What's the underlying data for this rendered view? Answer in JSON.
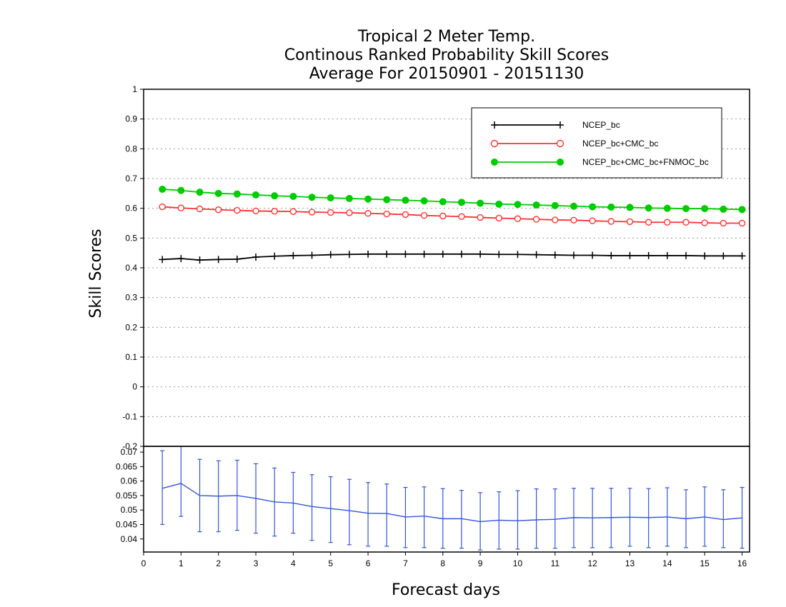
{
  "title": {
    "line1": "Tropical 2 Meter Temp.",
    "line2": "Continous Ranked Probability Skill Scores",
    "line3": "Average For 20150901 - 20151130"
  },
  "chart_data": [
    {
      "type": "line",
      "panel": "top",
      "xlabel": "Forecast days",
      "ylabel": "Skill Scores",
      "xlim": [
        0,
        16.2
      ],
      "ylim": [
        -0.2,
        1.0
      ],
      "yticks": [
        -0.2,
        -0.1,
        0,
        0.1,
        0.2,
        0.3,
        0.4,
        0.5,
        0.6,
        0.7,
        0.8,
        0.9,
        1
      ],
      "ytick_labels": [
        "-0.2",
        "-0.1",
        "0",
        "0.1",
        "0.2",
        "0.3",
        "0.4",
        "0.5",
        "0.6",
        "0.7",
        "0.8",
        "0.9",
        "1"
      ],
      "grid": true,
      "legend_position": "top-right",
      "x": [
        0.5,
        1.0,
        1.5,
        2.0,
        2.5,
        3.0,
        3.5,
        4.0,
        4.5,
        5.0,
        5.5,
        6.0,
        6.5,
        7.0,
        7.5,
        8.0,
        8.5,
        9.0,
        9.5,
        10.0,
        10.5,
        11.0,
        11.5,
        12.0,
        12.5,
        13.0,
        13.5,
        14.0,
        14.5,
        15.0,
        15.5,
        16.0
      ],
      "series": [
        {
          "name": "NCEP_bc",
          "color": "#000000",
          "marker": "plus",
          "values": [
            0.428,
            0.431,
            0.426,
            0.428,
            0.429,
            0.436,
            0.439,
            0.441,
            0.442,
            0.444,
            0.445,
            0.446,
            0.446,
            0.446,
            0.446,
            0.446,
            0.446,
            0.446,
            0.445,
            0.445,
            0.444,
            0.443,
            0.442,
            0.442,
            0.441,
            0.441,
            0.441,
            0.441,
            0.441,
            0.44,
            0.44,
            0.44
          ]
        },
        {
          "name": "NCEP_bc+CMC_bc",
          "color": "#ff3333",
          "marker": "open-circle",
          "values": [
            0.605,
            0.601,
            0.598,
            0.595,
            0.593,
            0.591,
            0.59,
            0.589,
            0.587,
            0.586,
            0.585,
            0.583,
            0.581,
            0.579,
            0.576,
            0.574,
            0.572,
            0.569,
            0.567,
            0.565,
            0.563,
            0.561,
            0.56,
            0.558,
            0.556,
            0.555,
            0.553,
            0.553,
            0.553,
            0.551,
            0.55,
            0.55
          ]
        },
        {
          "name": "NCEP_bc+CMC_bc+FNMOC_bc",
          "color": "#00cc00",
          "marker": "filled-circle",
          "values": [
            0.664,
            0.66,
            0.654,
            0.65,
            0.648,
            0.645,
            0.642,
            0.64,
            0.637,
            0.635,
            0.633,
            0.631,
            0.629,
            0.627,
            0.625,
            0.622,
            0.62,
            0.617,
            0.614,
            0.613,
            0.611,
            0.609,
            0.607,
            0.605,
            0.604,
            0.603,
            0.601,
            0.6,
            0.599,
            0.599,
            0.597,
            0.596
          ]
        }
      ]
    },
    {
      "type": "line",
      "panel": "bottom",
      "error_bars": true,
      "xlabel": "Forecast days",
      "xlim": [
        0,
        16.2
      ],
      "ylim": [
        0.0355,
        0.072
      ],
      "xticks": [
        0,
        1,
        2,
        3,
        4,
        5,
        6,
        7,
        8,
        9,
        10,
        11,
        12,
        13,
        14,
        15,
        16
      ],
      "xtick_labels": [
        "0",
        "1",
        "2",
        "3",
        "4",
        "5",
        "6",
        "7",
        "8",
        "9",
        "10",
        "11",
        "12",
        "13",
        "14",
        "15",
        "16"
      ],
      "yticks": [
        0.04,
        0.045,
        0.05,
        0.055,
        0.06,
        0.065,
        0.07
      ],
      "ytick_labels": [
        "0.04",
        "0.045",
        "0.05",
        "0.055",
        "0.06",
        "0.065",
        "0.07"
      ],
      "color": "#3355dd",
      "x": [
        0.5,
        1.0,
        1.5,
        2.0,
        2.5,
        3.0,
        3.5,
        4.0,
        4.5,
        5.0,
        5.5,
        6.0,
        6.5,
        7.0,
        7.5,
        8.0,
        8.5,
        9.0,
        9.5,
        10.0,
        10.5,
        11.0,
        11.5,
        12.0,
        12.5,
        13.0,
        13.5,
        14.0,
        14.5,
        15.0,
        15.5,
        16.0
      ],
      "values": [
        0.0575,
        0.0592,
        0.055,
        0.0548,
        0.055,
        0.054,
        0.0528,
        0.0524,
        0.0512,
        0.0505,
        0.0498,
        0.0489,
        0.0488,
        0.0476,
        0.0479,
        0.047,
        0.047,
        0.046,
        0.0465,
        0.0463,
        0.0466,
        0.0468,
        0.0474,
        0.0473,
        0.0474,
        0.0475,
        0.0474,
        0.0476,
        0.047,
        0.0476,
        0.0467,
        0.0473
      ],
      "upper": [
        0.0705,
        0.072,
        0.0675,
        0.067,
        0.0672,
        0.066,
        0.0645,
        0.063,
        0.0622,
        0.0615,
        0.0606,
        0.0595,
        0.059,
        0.0578,
        0.058,
        0.0574,
        0.0568,
        0.056,
        0.0563,
        0.0567,
        0.0573,
        0.0573,
        0.0575,
        0.0575,
        0.0575,
        0.0575,
        0.0574,
        0.0577,
        0.057,
        0.058,
        0.057,
        0.0578
      ],
      "lower": [
        0.045,
        0.0478,
        0.0425,
        0.0425,
        0.043,
        0.042,
        0.041,
        0.042,
        0.0395,
        0.0388,
        0.038,
        0.0375,
        0.0375,
        0.037,
        0.037,
        0.0368,
        0.0368,
        0.0362,
        0.0365,
        0.0365,
        0.0368,
        0.0368,
        0.037,
        0.037,
        0.037,
        0.0375,
        0.037,
        0.0375,
        0.037,
        0.0375,
        0.037,
        0.0368
      ]
    }
  ]
}
